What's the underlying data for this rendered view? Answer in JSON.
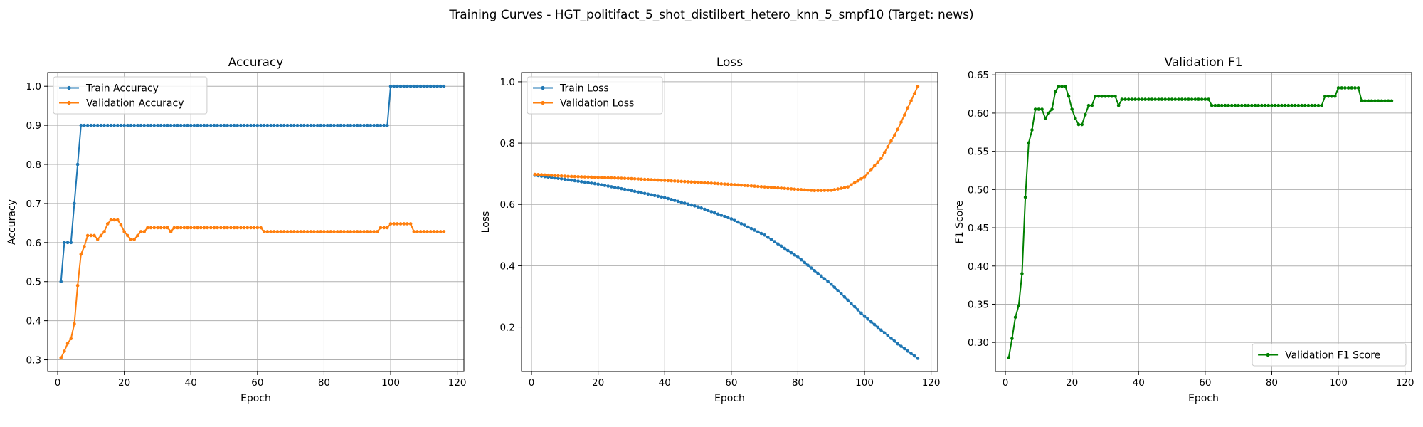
{
  "figure": {
    "suptitle": "Training Curves - HGT_politifact_5_shot_distilbert_hetero_knn_5_smpf10 (Target: news)"
  },
  "chart_data": [
    {
      "type": "line",
      "title": "Accuracy",
      "xlabel": "Epoch",
      "ylabel": "Accuracy",
      "xlim": [
        -3,
        122
      ],
      "ylim": [
        0.27,
        1.035
      ],
      "xticks": [
        0,
        20,
        40,
        60,
        80,
        100,
        120
      ],
      "yticks": [
        0.3,
        0.4,
        0.5,
        0.6,
        0.7,
        0.8,
        0.9,
        1.0
      ],
      "ytick_decimals": 1,
      "grid": true,
      "legend": "upper-left",
      "series": [
        {
          "name": "Train Accuracy",
          "color": "#1f77b4",
          "segments": [
            {
              "x": [
                1,
                2,
                3,
                4,
                5,
                6,
                7
              ],
              "values": [
                0.5,
                0.6,
                0.6,
                0.6,
                0.7,
                0.8,
                0.9
              ]
            },
            {
              "from": 7,
              "to": 99,
              "value": 0.9
            },
            {
              "from": 100,
              "to": 116,
              "value": 1.0
            }
          ]
        },
        {
          "name": "Validation Accuracy",
          "color": "#ff7f0e",
          "segments": [
            {
              "x": [
                1,
                2,
                3,
                4,
                5,
                6,
                7,
                8,
                9,
                10,
                11,
                12,
                13,
                14,
                15,
                16,
                17,
                18,
                19,
                20,
                21,
                22,
                23,
                24,
                25,
                26,
                27
              ],
              "values": [
                0.305,
                0.322,
                0.342,
                0.354,
                0.392,
                0.49,
                0.57,
                0.59,
                0.618,
                0.618,
                0.618,
                0.608,
                0.618,
                0.628,
                0.648,
                0.658,
                0.658,
                0.658,
                0.645,
                0.628,
                0.618,
                0.608,
                0.608,
                0.618,
                0.628,
                0.628,
                0.638
              ]
            },
            {
              "from": 27,
              "to": 33,
              "value": 0.638
            },
            {
              "x": [
                34
              ],
              "values": [
                0.628
              ]
            },
            {
              "from": 35,
              "to": 61,
              "value": 0.638
            },
            {
              "from": 62,
              "to": 96,
              "value": 0.628
            },
            {
              "from": 97,
              "to": 99,
              "value": 0.638
            },
            {
              "from": 100,
              "to": 106,
              "value": 0.648
            },
            {
              "from": 107,
              "to": 116,
              "value": 0.628
            }
          ]
        }
      ]
    },
    {
      "type": "line",
      "title": "Loss",
      "xlabel": "Epoch",
      "ylabel": "Loss",
      "xlim": [
        -3,
        122
      ],
      "ylim": [
        0.055,
        1.03
      ],
      "xticks": [
        0,
        20,
        40,
        60,
        80,
        100,
        120
      ],
      "yticks": [
        0.2,
        0.4,
        0.6,
        0.8,
        1.0
      ],
      "ytick_decimals": 1,
      "grid": true,
      "legend": "upper-left",
      "series": [
        {
          "name": "Train Loss",
          "color": "#1f77b4",
          "segments": [
            {
              "x": [
                1,
                10,
                20,
                30,
                40,
                50,
                60,
                70,
                80,
                90,
                100,
                110,
                116
              ],
              "values": [
                0.695,
                0.682,
                0.666,
                0.645,
                0.622,
                0.592,
                0.553,
                0.5,
                0.428,
                0.34,
                0.235,
                0.145,
                0.098
              ],
              "fill_every": 1
            }
          ]
        },
        {
          "name": "Validation Loss",
          "color": "#ff7f0e",
          "segments": [
            {
              "x": [
                1,
                10,
                20,
                30,
                40,
                50,
                60,
                70,
                80,
                85,
                90,
                95,
                100,
                105,
                110,
                116
              ],
              "values": [
                0.698,
                0.692,
                0.688,
                0.684,
                0.678,
                0.672,
                0.665,
                0.657,
                0.649,
                0.645,
                0.646,
                0.657,
                0.69,
                0.75,
                0.845,
                0.985
              ],
              "fill_every": 1
            }
          ]
        }
      ]
    },
    {
      "type": "line",
      "title": "Validation F1",
      "xlabel": "Epoch",
      "ylabel": "F1 Score",
      "xlim": [
        -3,
        122
      ],
      "ylim": [
        0.262,
        0.653
      ],
      "xticks": [
        0,
        20,
        40,
        60,
        80,
        100,
        120
      ],
      "yticks": [
        0.3,
        0.35,
        0.4,
        0.45,
        0.5,
        0.55,
        0.6,
        0.65
      ],
      "ytick_decimals": 2,
      "grid": true,
      "legend": "lower-right",
      "series": [
        {
          "name": "Validation F1 Score",
          "color": "#008000",
          "segments": [
            {
              "x": [
                1,
                2,
                3,
                4,
                5,
                6,
                7,
                8,
                9,
                10,
                11,
                12,
                13,
                14,
                15,
                16,
                17,
                18,
                19,
                20,
                21,
                22,
                23,
                24,
                25,
                26,
                27
              ],
              "values": [
                0.28,
                0.305,
                0.333,
                0.348,
                0.39,
                0.49,
                0.561,
                0.578,
                0.605,
                0.605,
                0.605,
                0.593,
                0.6,
                0.605,
                0.628,
                0.635,
                0.635,
                0.635,
                0.622,
                0.605,
                0.593,
                0.585,
                0.585,
                0.598,
                0.61,
                0.61,
                0.622
              ]
            },
            {
              "from": 27,
              "to": 33,
              "value": 0.622
            },
            {
              "x": [
                34
              ],
              "values": [
                0.61
              ]
            },
            {
              "from": 35,
              "to": 61,
              "value": 0.618
            },
            {
              "from": 62,
              "to": 95,
              "value": 0.61
            },
            {
              "from": 96,
              "to": 99,
              "value": 0.622
            },
            {
              "from": 100,
              "to": 106,
              "value": 0.633
            },
            {
              "from": 107,
              "to": 116,
              "value": 0.616
            }
          ]
        }
      ]
    }
  ]
}
